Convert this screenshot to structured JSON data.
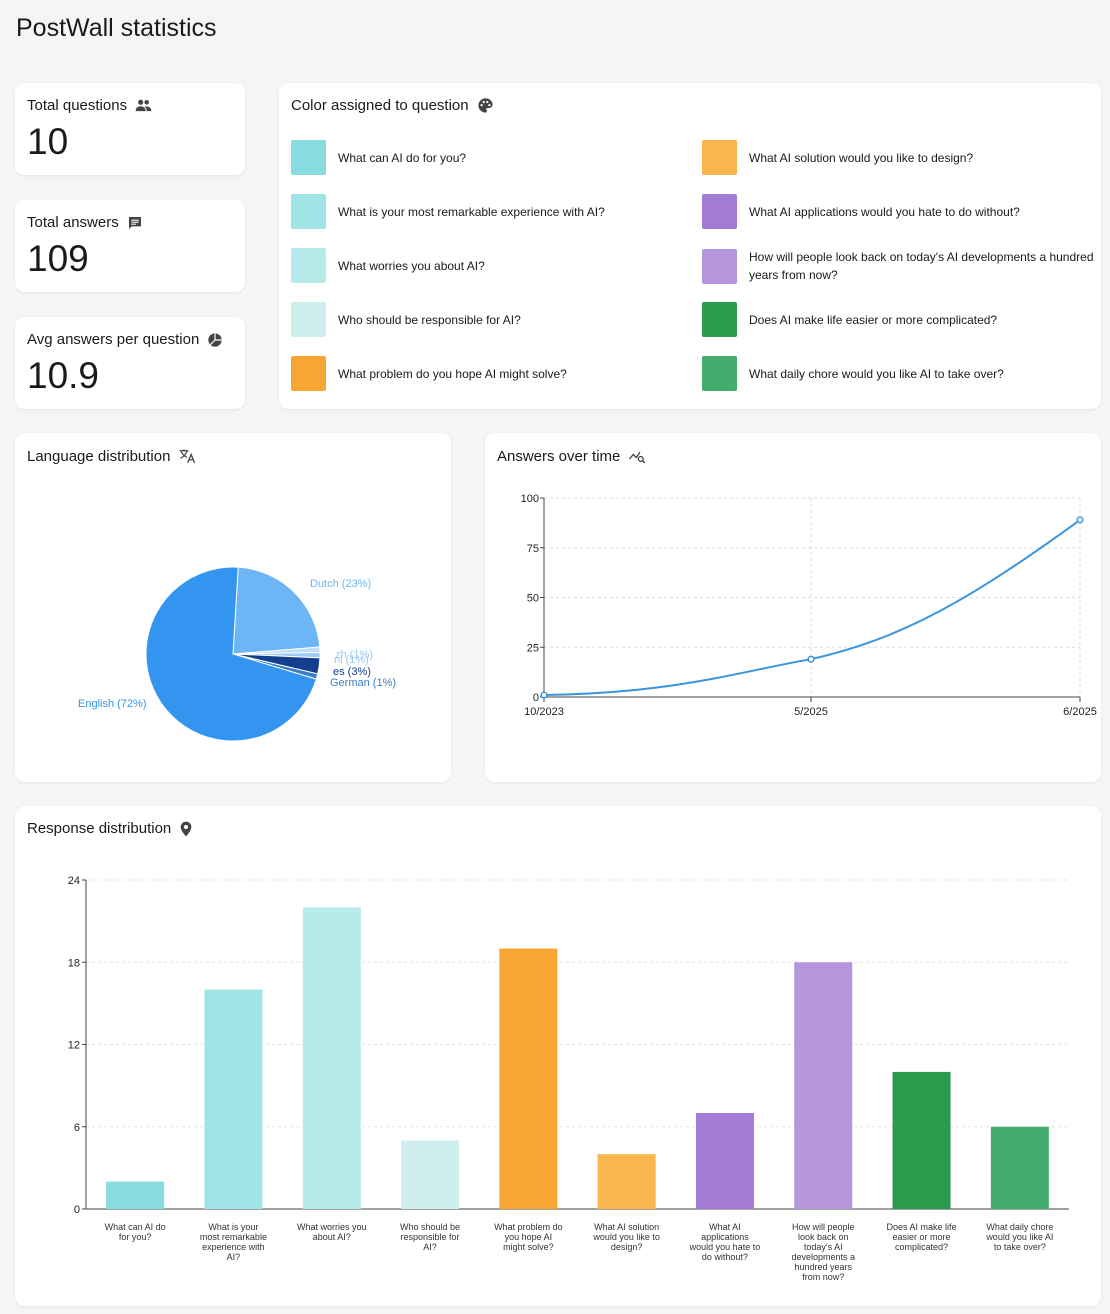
{
  "page": {
    "title": "PostWall statistics"
  },
  "stats": [
    {
      "label": "Total questions",
      "value": "10",
      "icon": "people-icon"
    },
    {
      "label": "Total answers",
      "value": "109",
      "icon": "message-icon"
    },
    {
      "label": "Avg answers per question",
      "value": "10.9",
      "icon": "pie-icon"
    }
  ],
  "color_legend": {
    "title": "Color assigned to question",
    "icon": "palette-icon",
    "items": [
      {
        "label": "What can AI do for you?",
        "color": "#86dcdf"
      },
      {
        "label": "What AI solution would you like to design?",
        "color": "#f9b64e"
      },
      {
        "label": "What is your most remarkable experience with AI?",
        "color": "#a0e4e5"
      },
      {
        "label": "What AI applications would you hate to do without?",
        "color": "#a27bd4"
      },
      {
        "label": "What worries you about AI?",
        "color": "#b6eaeb"
      },
      {
        "label": "How will people look back on today's AI developments a hundred years from now?",
        "color": "#b596dc"
      },
      {
        "label": "Who should be responsible for AI?",
        "color": "#cfefef"
      },
      {
        "label": "Does AI make life easier or more complicated?",
        "color": "#2a9a4c"
      },
      {
        "label": "What problem do you hope AI might solve?",
        "color": "#f7a633"
      },
      {
        "label": "What daily chore would you like AI to take over?",
        "color": "#44ad6d"
      }
    ]
  },
  "language_card": {
    "title": "Language distribution",
    "icon": "translate-icon"
  },
  "time_card": {
    "title": "Answers over time",
    "icon": "query-stats-icon"
  },
  "response_card": {
    "title": "Response distribution",
    "icon": "location-pin-icon"
  },
  "chart_data": [
    {
      "type": "pie",
      "slices": [
        {
          "label": "English (72%)",
          "value": 72,
          "color": "#3395ef"
        },
        {
          "label": "Dutch (23%)",
          "value": 23,
          "color": "#6db5f4"
        },
        {
          "label": "zh (1%)",
          "value": 1,
          "color": "#bcdcfa"
        },
        {
          "label": "nl (1%)",
          "value": 1,
          "color": "#9acaf7"
        },
        {
          "label": "es (3%)",
          "value": 3,
          "color": "#143f8f"
        },
        {
          "label": "German (1%)",
          "value": 1,
          "color": "#3a7ec6"
        }
      ]
    },
    {
      "type": "line",
      "x": [
        "10/2023",
        "5/2025",
        "6/2025"
      ],
      "y": [
        1,
        19,
        89
      ],
      "ylim": [
        0,
        100
      ],
      "yticks": [
        0,
        25,
        50,
        75,
        100
      ],
      "color": "#3b95dd"
    },
    {
      "type": "bar",
      "categories": [
        "What can AI do for you?",
        "What is your most remarkable experience with AI?",
        "What worries you about AI?",
        "Who should be responsible for AI?",
        "What problem do you hope AI might solve?",
        "What AI solution would you like to design?",
        "What AI applications would you hate to do without?",
        "How will people look back on today's AI developments a hundred years from now?",
        "Does AI make life easier or more complicated?",
        "What daily chore would you like AI to take over?"
      ],
      "values": [
        2,
        16,
        22,
        5,
        19,
        4,
        7,
        18,
        10,
        6
      ],
      "colors": [
        "#86dcdf",
        "#a0e4e5",
        "#b6eaeb",
        "#cfefef",
        "#f7a633",
        "#f9b64e",
        "#a27bd4",
        "#b596dc",
        "#2a9a4c",
        "#44ad6d"
      ],
      "ylim": [
        0,
        24
      ],
      "yticks": [
        0,
        6,
        12,
        18,
        24
      ]
    }
  ]
}
